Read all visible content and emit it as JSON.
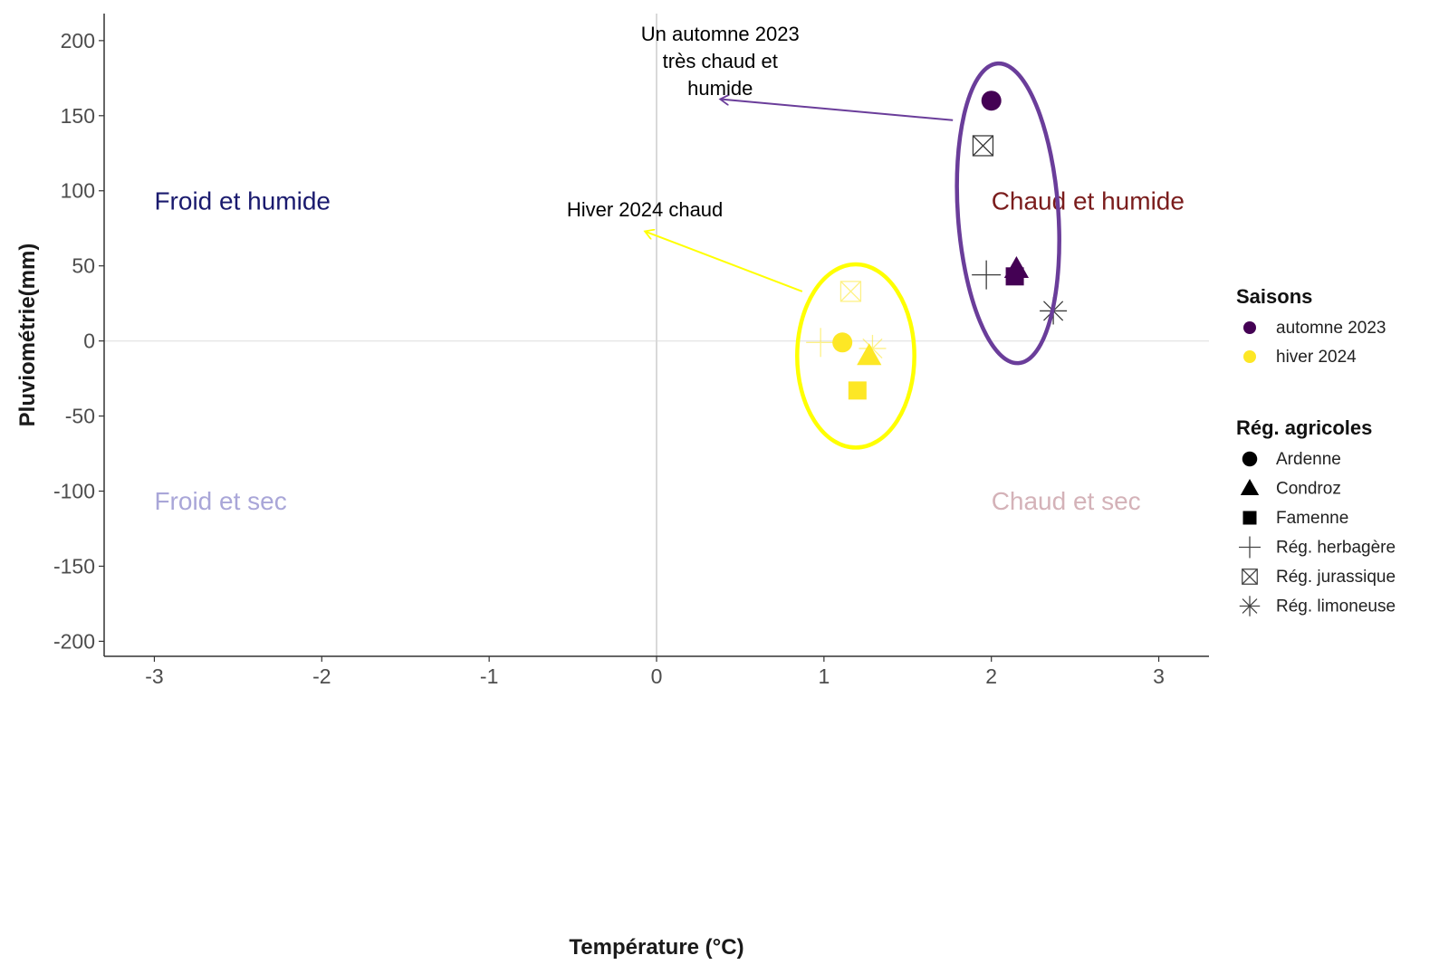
{
  "chart_data": {
    "type": "scatter",
    "xlabel": "Température (°C)",
    "ylabel": "Pluviométrie(mm)",
    "xlim": [
      -3.3,
      3.3
    ],
    "ylim": [
      -210,
      218
    ],
    "xticks": [
      -3,
      -2,
      -1,
      0,
      1,
      2,
      3
    ],
    "yticks": [
      200,
      150,
      100,
      50,
      0,
      -50,
      -100,
      -150,
      -200
    ],
    "reference_lines": {
      "x": 0,
      "y": 0
    },
    "grid": false,
    "quadrant_labels": [
      {
        "text": "Froid et humide",
        "x": -3.0,
        "y": 93,
        "color": "#1a1a6e"
      },
      {
        "text": "Chaud et humide",
        "x": 2.0,
        "y": 93,
        "color": "#7a1c1c"
      },
      {
        "text": "Froid et sec",
        "x": -3.0,
        "y": -107,
        "color": "#a9a6d8"
      },
      {
        "text": "Chaud et sec",
        "x": 2.0,
        "y": -107,
        "color": "#d4b2b8"
      }
    ],
    "series": [
      {
        "name": "automne 2023",
        "color": "#440154",
        "points": [
          {
            "region": "Ardenne",
            "x": 2.0,
            "y": 160
          },
          {
            "region": "Rég. jurassique",
            "x": 1.95,
            "y": 130
          },
          {
            "region": "Rég. herbagère",
            "x": 1.97,
            "y": 44
          },
          {
            "region": "Condroz",
            "x": 2.15,
            "y": 48
          },
          {
            "region": "Famenne",
            "x": 2.14,
            "y": 43
          },
          {
            "region": "Rég. limoneuse",
            "x": 2.37,
            "y": 20
          }
        ]
      },
      {
        "name": "hiver 2024",
        "color": "#fde725",
        "points": [
          {
            "region": "Rég. jurassique",
            "x": 1.16,
            "y": 33
          },
          {
            "region": "Rég. herbagère",
            "x": 0.98,
            "y": -1
          },
          {
            "region": "Ardenne",
            "x": 1.11,
            "y": -1
          },
          {
            "region": "Rég. limoneuse",
            "x": 1.29,
            "y": -5
          },
          {
            "region": "Condroz",
            "x": 1.27,
            "y": -10
          },
          {
            "region": "Famenne",
            "x": 1.2,
            "y": -33
          }
        ]
      }
    ],
    "annotations": [
      {
        "lines": [
          "Un automne 2023",
          "très chaud et",
          "humide"
        ],
        "color": "#6a3d9a",
        "ellipse": {
          "cx": 2.1,
          "cy": 85,
          "rx": 0.3,
          "ry": 100,
          "rot": 4
        },
        "arrow": {
          "x1": 1.77,
          "y1": 147,
          "x2": 0.38,
          "y2": 161
        },
        "text_x": 0.38,
        "text_y": 200
      },
      {
        "lines": [
          "Hiver 2024 chaud"
        ],
        "color": "#ffff00",
        "ellipse": {
          "cx": 1.19,
          "cy": -10,
          "rx": 0.35,
          "ry": 61,
          "rot": 0
        },
        "arrow": {
          "x1": 0.87,
          "y1": 33,
          "x2": -0.07,
          "y2": 73
        },
        "text_x": -0.07,
        "text_y": 83
      }
    ],
    "legend": {
      "placement": "right",
      "color_title": "Saisons",
      "color_entries": [
        {
          "label": "automne 2023",
          "color": "#440154"
        },
        {
          "label": "hiver 2024",
          "color": "#fde725"
        }
      ],
      "shape_title": "Rég. agricoles",
      "shape_entries": [
        {
          "label": "Ardenne",
          "shape": "circle"
        },
        {
          "label": "Condroz",
          "shape": "triangle"
        },
        {
          "label": "Famenne",
          "shape": "square"
        },
        {
          "label": "Rég. herbagère",
          "shape": "plus"
        },
        {
          "label": "Rég. jurassique",
          "shape": "boxed-x"
        },
        {
          "label": "Rég. limoneuse",
          "shape": "asterisk"
        }
      ]
    }
  }
}
